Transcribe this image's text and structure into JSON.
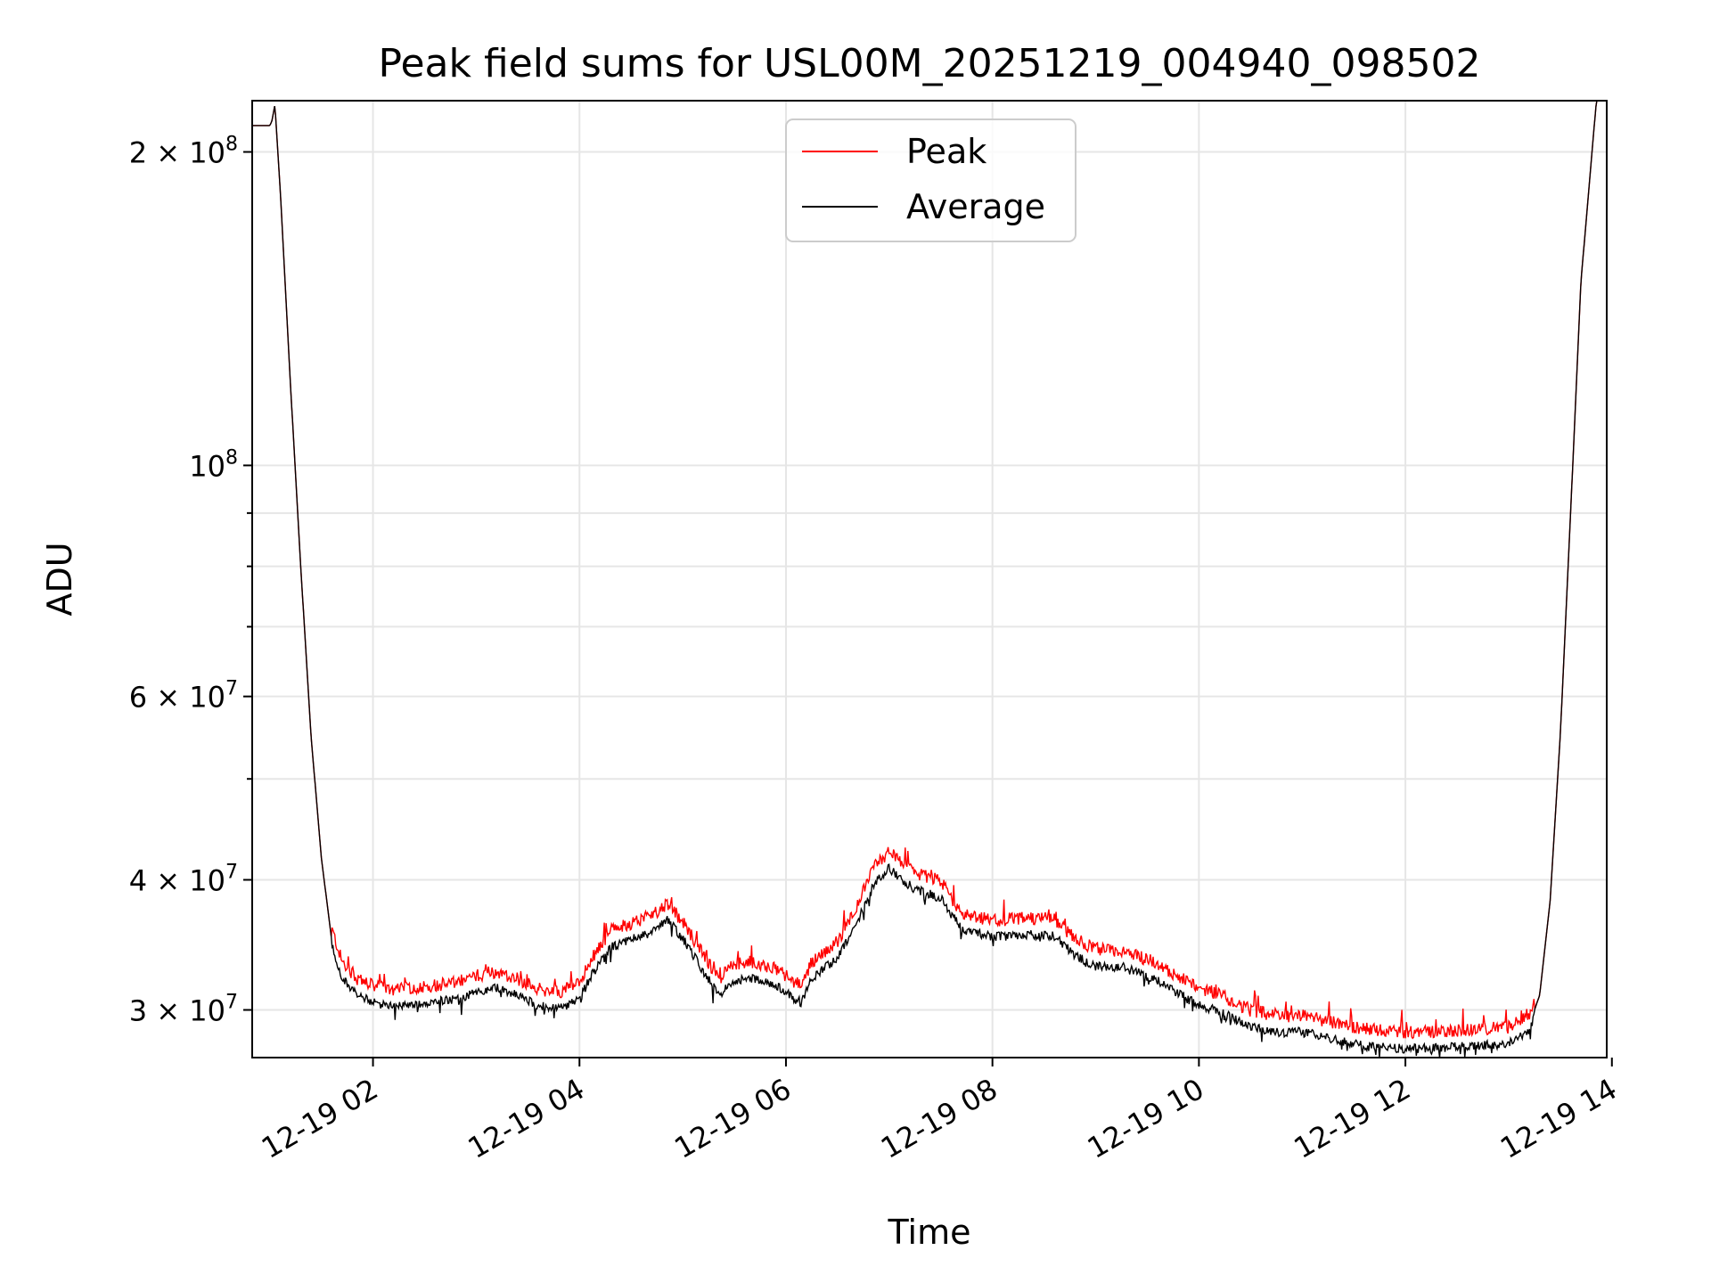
{
  "chart_data": {
    "type": "line",
    "title": "Peak field sums for USL00M_20251219_004940_098502",
    "xlabel": "Time",
    "ylabel": "ADU",
    "yscale": "log",
    "grid": true,
    "legend_position": "upper center",
    "xlim_hours": [
      0.83,
      13.95
    ],
    "ylim": [
      27000000,
      224000000
    ],
    "x_ticks": [
      {
        "hour": 2,
        "label": "12-19 02"
      },
      {
        "hour": 4,
        "label": "12-19 04"
      },
      {
        "hour": 6,
        "label": "12-19 06"
      },
      {
        "hour": 8,
        "label": "12-19 08"
      },
      {
        "hour": 10,
        "label": "12-19 10"
      },
      {
        "hour": 12,
        "label": "12-19 12"
      },
      {
        "hour": 14,
        "label": "12-19 14"
      }
    ],
    "y_ticks": [
      {
        "value": 30000000,
        "label": "3 × 10",
        "exp": "7"
      },
      {
        "value": 40000000,
        "label": "4 × 10",
        "exp": "7"
      },
      {
        "value": 60000000,
        "label": "6 × 10",
        "exp": "7"
      },
      {
        "value": 100000000,
        "label": "10",
        "exp": "8"
      },
      {
        "value": 200000000,
        "label": "2 × 10",
        "exp": "8"
      }
    ],
    "y_minor_ticks": [
      50000000,
      70000000,
      80000000,
      90000000
    ],
    "series": [
      {
        "name": "Peak",
        "color": "#ff0000"
      },
      {
        "name": "Average",
        "color": "#000000"
      }
    ],
    "average_curve": [
      [
        0.83,
        212000000
      ],
      [
        1.0,
        212000000
      ],
      [
        1.02,
        214000000
      ],
      [
        1.05,
        222000000
      ],
      [
        1.1,
        185000000
      ],
      [
        1.2,
        120000000
      ],
      [
        1.3,
        80000000
      ],
      [
        1.4,
        55000000
      ],
      [
        1.5,
        42000000
      ],
      [
        1.6,
        35000000
      ],
      [
        1.7,
        32500000
      ],
      [
        1.85,
        31300000
      ],
      [
        2.0,
        30800000
      ],
      [
        2.2,
        30500000
      ],
      [
        2.5,
        30800000
      ],
      [
        2.8,
        31000000
      ],
      [
        3.0,
        31500000
      ],
      [
        3.2,
        31800000
      ],
      [
        3.4,
        31300000
      ],
      [
        3.6,
        30600000
      ],
      [
        3.8,
        30400000
      ],
      [
        4.0,
        31000000
      ],
      [
        4.1,
        32500000
      ],
      [
        4.3,
        34800000
      ],
      [
        4.5,
        35400000
      ],
      [
        4.7,
        36000000
      ],
      [
        4.85,
        37000000
      ],
      [
        5.0,
        35500000
      ],
      [
        5.2,
        33000000
      ],
      [
        5.35,
        31300000
      ],
      [
        5.5,
        32300000
      ],
      [
        5.7,
        32500000
      ],
      [
        5.9,
        32000000
      ],
      [
        6.05,
        31200000
      ],
      [
        6.15,
        30800000
      ],
      [
        6.25,
        32500000
      ],
      [
        6.5,
        34000000
      ],
      [
        6.7,
        37000000
      ],
      [
        6.85,
        40000000
      ],
      [
        7.0,
        41500000
      ],
      [
        7.1,
        40500000
      ],
      [
        7.25,
        39600000
      ],
      [
        7.5,
        38800000
      ],
      [
        7.7,
        36200000
      ],
      [
        8.0,
        35600000
      ],
      [
        8.3,
        35800000
      ],
      [
        8.6,
        35700000
      ],
      [
        8.8,
        34200000
      ],
      [
        9.0,
        33400000
      ],
      [
        9.3,
        33300000
      ],
      [
        9.6,
        32300000
      ],
      [
        10.0,
        30600000
      ],
      [
        10.2,
        30200000
      ],
      [
        10.5,
        29200000
      ],
      [
        10.8,
        28800000
      ],
      [
        11.0,
        28900000
      ],
      [
        11.3,
        28400000
      ],
      [
        11.6,
        28000000
      ],
      [
        12.0,
        27800000
      ],
      [
        12.4,
        27900000
      ],
      [
        12.7,
        28000000
      ],
      [
        13.0,
        28100000
      ],
      [
        13.2,
        29000000
      ],
      [
        13.3,
        31000000
      ],
      [
        13.4,
        38000000
      ],
      [
        13.5,
        55000000
      ],
      [
        13.6,
        90000000
      ],
      [
        13.7,
        150000000
      ],
      [
        13.85,
        224000000
      ]
    ]
  }
}
